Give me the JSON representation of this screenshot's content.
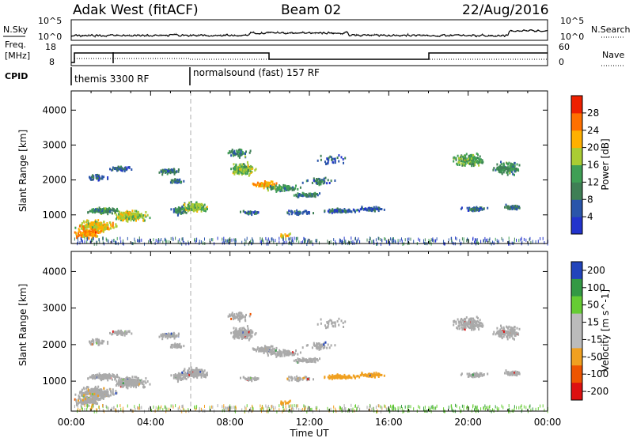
{
  "header": {
    "station": "Adak West (fitACF)",
    "beam": "Beam 02",
    "date": "22/Aug/2016"
  },
  "top_panels": {
    "nsky_label": "N.Sky",
    "nsearch_label": "N.Search",
    "nsky_ticks": [
      "10^5",
      "10^0"
    ],
    "nsearch_ticks": [
      "10^5",
      "10^0"
    ],
    "freq_label": [
      "Freq.",
      "[MHz]"
    ],
    "freq_ticks": [
      "18",
      "8"
    ],
    "nave_label": "Nave",
    "nave_ticks": [
      "60",
      "0"
    ],
    "cpid_label": "CPID",
    "cpid_segments": [
      {
        "label": "themis 3300 RF",
        "start_hour": 0
      },
      {
        "label": "normalsound (fast) 157 RF",
        "start_hour": 6
      }
    ]
  },
  "time_axis": {
    "label": "Time UT",
    "ticks": [
      "00:00",
      "04:00",
      "08:00",
      "12:00",
      "16:00",
      "20:00",
      "00:00"
    ]
  },
  "colors": {
    "power": [
      "#2233cc",
      "#2a55aa",
      "#3f7f55",
      "#3f9f55",
      "#aacc33",
      "#ffb000",
      "#ff7000",
      "#ee2000"
    ],
    "velocity": [
      "#dd1111",
      "#ee5500",
      "#f0a020",
      "#bbbbbb",
      "#bbbbbb",
      "#66cc33",
      "#339944",
      "#2244bb"
    ],
    "ground": "#aaaaaa"
  },
  "chart_data": [
    {
      "type": "heatmap",
      "panel": "power",
      "xlabel": "Time UT",
      "ylabel": "Slant Range [km]",
      "xlim": [
        0,
        24
      ],
      "ylim": [
        180,
        4550
      ],
      "yticks": [
        "1000",
        "2000",
        "3000",
        "4000"
      ],
      "colorbar_label": "Power [dB]",
      "colorbar_ticks": [
        "4",
        "8",
        "12",
        "16",
        "20",
        "24",
        "28"
      ],
      "colorbar_range": [
        0,
        32
      ]
    },
    {
      "type": "heatmap",
      "panel": "velocity",
      "xlabel": "Time UT",
      "ylabel": "Slant Range [km]",
      "xlim": [
        0,
        24
      ],
      "ylim": [
        180,
        4550
      ],
      "yticks": [
        "1000",
        "2000",
        "3000",
        "4000"
      ],
      "colorbar_label": "Velocity [m s^-1]",
      "colorbar_ticks": [
        "-200",
        "-100",
        "-50",
        "-15",
        "15",
        "50",
        "100",
        "200"
      ]
    }
  ]
}
